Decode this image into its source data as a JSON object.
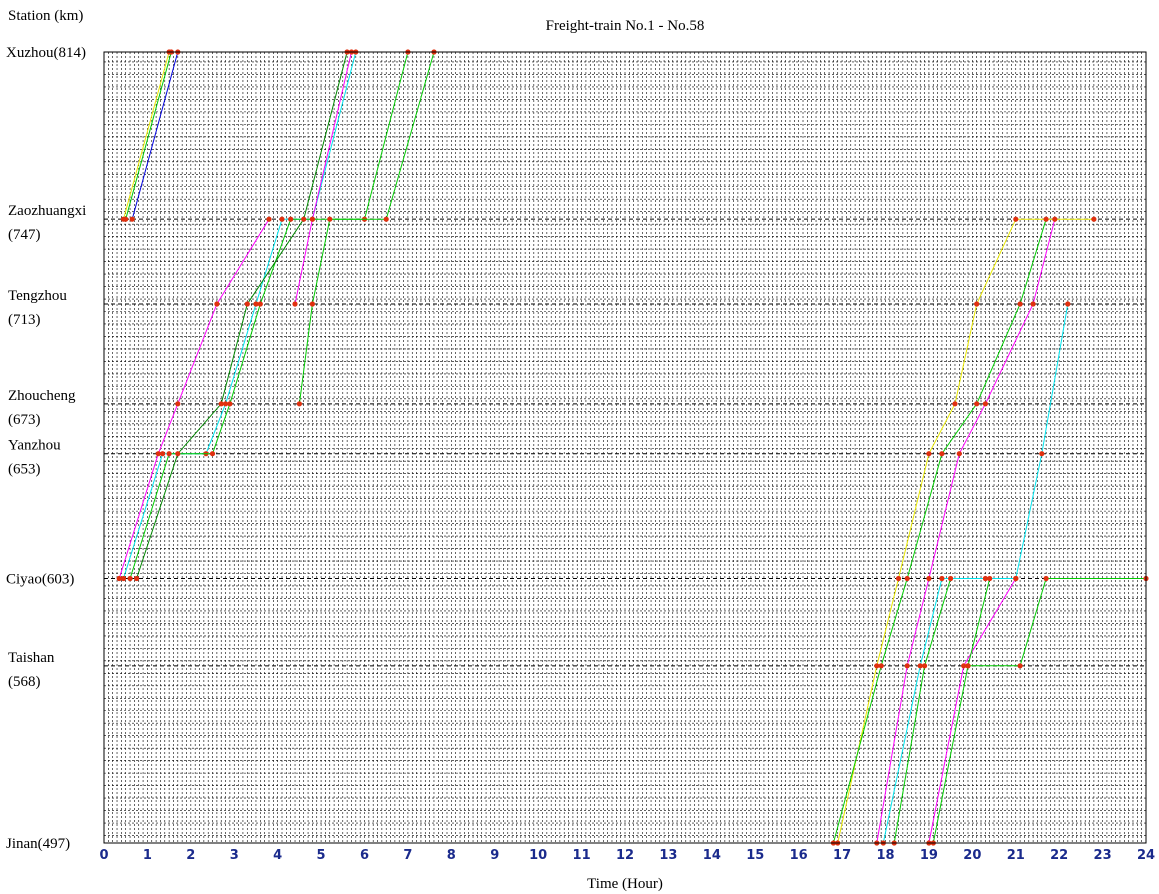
{
  "chart_data": {
    "type": "line",
    "title": "Freight-train No.1 - No.58",
    "xlabel": "Time (Hour)",
    "ylabel": "Station (km)",
    "xlim": [
      0,
      24
    ],
    "ylim": [
      497,
      814
    ],
    "x_ticks": [
      0,
      1,
      2,
      3,
      4,
      5,
      6,
      7,
      8,
      9,
      10,
      11,
      12,
      13,
      14,
      15,
      16,
      17,
      18,
      19,
      20,
      21,
      22,
      23,
      24
    ],
    "grid": true,
    "stations": [
      {
        "name": "Xuzhou(814)",
        "km": 814
      },
      {
        "name": "Zaozhuangxi",
        "name2": "(747)",
        "km": 747
      },
      {
        "name": "Tengzhou",
        "name2": "(713)",
        "km": 713
      },
      {
        "name": "Zhoucheng",
        "name2": "(673)",
        "km": 673
      },
      {
        "name": "Yanzhou",
        "name2": "(653)",
        "km": 653
      },
      {
        "name": "Ciyao(603)",
        "km": 603
      },
      {
        "name": "Taishan",
        "name2": "(568)",
        "km": 568
      },
      {
        "name": "Jinan(497)",
        "km": 497
      }
    ],
    "colors": {
      "main": "#0000dd",
      "dots": "#e0300f",
      "alt": [
        "#ff00ff",
        "#00e5ee",
        "#00cc00",
        "#e8e800",
        "#008800"
      ]
    },
    "series": [
      {
        "color": "#e8e800",
        "points": [
          [
            0.45,
            747
          ],
          [
            1.5,
            814
          ]
        ]
      },
      {
        "color": "#00cc00",
        "points": [
          [
            0.5,
            747
          ],
          [
            1.55,
            814
          ]
        ]
      },
      {
        "color": "#0000dd",
        "points": [
          [
            0.65,
            747
          ],
          [
            1.7,
            814
          ]
        ]
      },
      {
        "color": "#ff00ff",
        "points": [
          [
            0.35,
            603
          ],
          [
            1.25,
            653
          ],
          [
            1.7,
            673
          ],
          [
            2.6,
            713
          ],
          [
            3.8,
            747
          ]
        ]
      },
      {
        "color": "#00e5ee",
        "points": [
          [
            0.45,
            603
          ],
          [
            1.35,
            653
          ],
          [
            2.35,
            653
          ],
          [
            2.8,
            673
          ],
          [
            3.5,
            713
          ],
          [
            4.1,
            747
          ],
          [
            4.8,
            747
          ],
          [
            5.8,
            814
          ]
        ]
      },
      {
        "color": "#00cc00",
        "points": [
          [
            0.6,
            603
          ],
          [
            1.5,
            653
          ],
          [
            2.5,
            653
          ],
          [
            2.9,
            673
          ],
          [
            3.6,
            713
          ],
          [
            4.3,
            747
          ],
          [
            6.0,
            747
          ],
          [
            7.0,
            814
          ]
        ]
      },
      {
        "color": "#008800",
        "points": [
          [
            0.75,
            603
          ],
          [
            1.7,
            653
          ],
          [
            2.7,
            673
          ],
          [
            3.3,
            713
          ],
          [
            4.6,
            747
          ],
          [
            5.6,
            814
          ]
        ]
      },
      {
        "color": "#ff00ff",
        "points": [
          [
            4.4,
            713
          ],
          [
            4.8,
            747
          ],
          [
            5.7,
            814
          ]
        ]
      },
      {
        "color": "#00cc00",
        "points": [
          [
            4.5,
            673
          ],
          [
            4.8,
            713
          ],
          [
            5.2,
            747
          ],
          [
            6.5,
            747
          ],
          [
            7.6,
            814
          ]
        ]
      },
      {
        "color": "#e8e800",
        "points": [
          [
            16.9,
            497
          ],
          [
            17.8,
            568
          ],
          [
            18.3,
            603
          ],
          [
            19.0,
            653
          ],
          [
            19.6,
            673
          ],
          [
            20.1,
            713
          ],
          [
            21.0,
            747
          ],
          [
            22.8,
            747
          ]
        ]
      },
      {
        "color": "#00cc00",
        "points": [
          [
            16.8,
            497
          ],
          [
            17.9,
            568
          ],
          [
            18.5,
            603
          ],
          [
            19.3,
            653
          ],
          [
            20.1,
            673
          ],
          [
            21.1,
            713
          ],
          [
            21.7,
            747
          ]
        ]
      },
      {
        "color": "#ff00ff",
        "points": [
          [
            17.8,
            497
          ],
          [
            18.5,
            568
          ],
          [
            19.0,
            603
          ],
          [
            19.7,
            653
          ],
          [
            20.3,
            673
          ],
          [
            21.4,
            713
          ],
          [
            21.9,
            747
          ]
        ]
      },
      {
        "color": "#00e5ee",
        "points": [
          [
            17.95,
            497
          ],
          [
            18.8,
            568
          ],
          [
            19.3,
            603
          ],
          [
            20.3,
            603
          ],
          [
            21.0,
            603
          ],
          [
            21.6,
            653
          ],
          [
            22.2,
            713
          ]
        ]
      },
      {
        "color": "#00cc00",
        "points": [
          [
            18.2,
            497
          ],
          [
            18.9,
            568
          ],
          [
            19.5,
            603
          ]
        ]
      },
      {
        "color": "#ff00ff",
        "points": [
          [
            19.0,
            497
          ],
          [
            19.8,
            568
          ],
          [
            21.0,
            603
          ]
        ]
      },
      {
        "color": "#00cc00",
        "points": [
          [
            19.1,
            497
          ],
          [
            19.9,
            568
          ],
          [
            21.1,
            568
          ],
          [
            21.7,
            603
          ],
          [
            24.0,
            603
          ]
        ]
      },
      {
        "color": "#00cc00",
        "points": [
          [
            19.9,
            568
          ],
          [
            20.4,
            603
          ]
        ]
      }
    ]
  }
}
